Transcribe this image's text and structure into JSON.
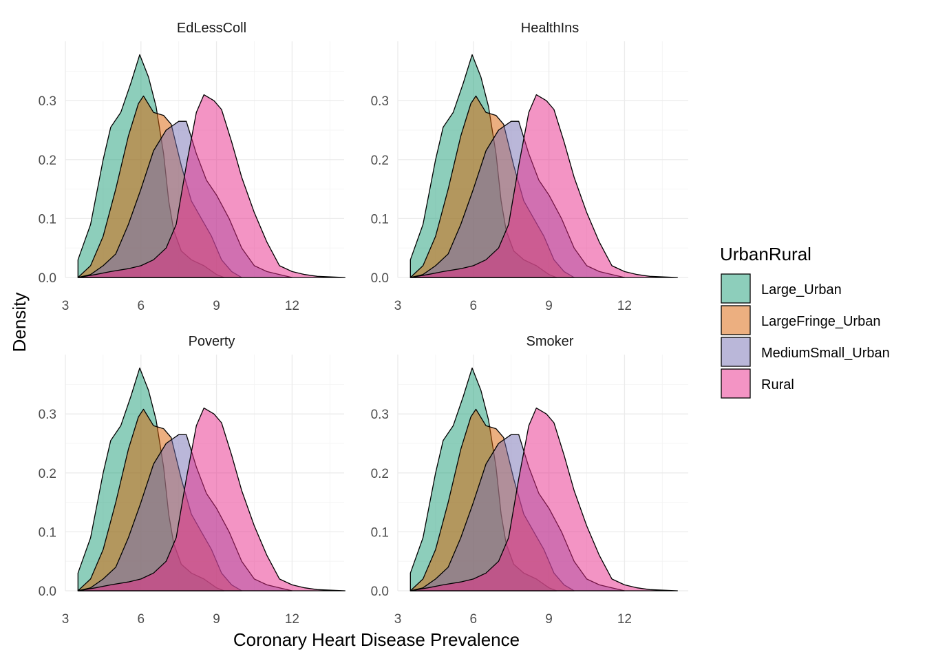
{
  "chart_data": {
    "type": "area",
    "subtype": "faceted density",
    "xlabel": "Coronary Heart Disease Prevalence",
    "ylabel": "Density",
    "xlim": [
      3.5,
      14.1
    ],
    "ylim": [
      0,
      0.385
    ],
    "x_ticks": [
      "3",
      "6",
      "9",
      "12"
    ],
    "y_ticks": [
      "0.0",
      "0.1",
      "0.2",
      "0.3"
    ],
    "legend": {
      "title": "UrbanRural",
      "position": "right"
    },
    "grid": true,
    "fill_alpha": 0.5,
    "facets": [
      "EdLessColl",
      "HealthIns",
      "Poverty",
      "Smoker"
    ],
    "series": [
      {
        "name": "Large_Urban",
        "color": "#1b9e77",
        "points": [
          [
            3.5,
            0.03
          ],
          [
            4.0,
            0.09
          ],
          [
            4.5,
            0.2
          ],
          [
            4.8,
            0.255
          ],
          [
            5.2,
            0.28
          ],
          [
            5.6,
            0.33
          ],
          [
            5.95,
            0.378
          ],
          [
            6.3,
            0.34
          ],
          [
            6.6,
            0.29
          ],
          [
            6.9,
            0.21
          ],
          [
            7.1,
            0.13
          ],
          [
            7.3,
            0.08
          ],
          [
            7.6,
            0.045
          ],
          [
            8.0,
            0.03
          ],
          [
            8.5,
            0.02
          ],
          [
            9.0,
            0.005
          ],
          [
            9.3,
            0
          ]
        ]
      },
      {
        "name": "LargeFringe_Urban",
        "color": "#d95f02",
        "points": [
          [
            3.5,
            0
          ],
          [
            4.0,
            0.02
          ],
          [
            4.5,
            0.07
          ],
          [
            5.0,
            0.15
          ],
          [
            5.5,
            0.24
          ],
          [
            5.9,
            0.295
          ],
          [
            6.1,
            0.308
          ],
          [
            6.5,
            0.28
          ],
          [
            6.9,
            0.275
          ],
          [
            7.2,
            0.26
          ],
          [
            7.6,
            0.19
          ],
          [
            8.0,
            0.13
          ],
          [
            8.4,
            0.1
          ],
          [
            8.8,
            0.07
          ],
          [
            9.2,
            0.03
          ],
          [
            9.6,
            0.01
          ],
          [
            10.0,
            0
          ]
        ]
      },
      {
        "name": "MediumSmall_Urban",
        "color": "#7570b3",
        "points": [
          [
            3.5,
            0
          ],
          [
            4.0,
            0.005
          ],
          [
            4.5,
            0.02
          ],
          [
            5.0,
            0.04
          ],
          [
            5.5,
            0.09
          ],
          [
            6.0,
            0.15
          ],
          [
            6.5,
            0.215
          ],
          [
            7.0,
            0.25
          ],
          [
            7.5,
            0.265
          ],
          [
            7.8,
            0.265
          ],
          [
            8.2,
            0.21
          ],
          [
            8.6,
            0.165
          ],
          [
            9.0,
            0.14
          ],
          [
            9.5,
            0.1
          ],
          [
            10.0,
            0.05
          ],
          [
            10.5,
            0.02
          ],
          [
            11.0,
            0.01
          ],
          [
            11.5,
            0.005
          ],
          [
            12.0,
            0
          ]
        ]
      },
      {
        "name": "Rural",
        "color": "#e7298a",
        "points": [
          [
            3.5,
            0
          ],
          [
            4.2,
            0.005
          ],
          [
            4.8,
            0.01
          ],
          [
            5.5,
            0.015
          ],
          [
            6.0,
            0.02
          ],
          [
            6.5,
            0.03
          ],
          [
            7.0,
            0.05
          ],
          [
            7.4,
            0.09
          ],
          [
            7.8,
            0.19
          ],
          [
            8.2,
            0.28
          ],
          [
            8.5,
            0.31
          ],
          [
            8.9,
            0.3
          ],
          [
            9.2,
            0.285
          ],
          [
            9.6,
            0.23
          ],
          [
            10.0,
            0.17
          ],
          [
            10.5,
            0.11
          ],
          [
            11.0,
            0.06
          ],
          [
            11.5,
            0.02
          ],
          [
            12.0,
            0.01
          ],
          [
            12.5,
            0.005
          ],
          [
            13.0,
            0.002
          ],
          [
            14.1,
            0
          ]
        ]
      }
    ]
  }
}
